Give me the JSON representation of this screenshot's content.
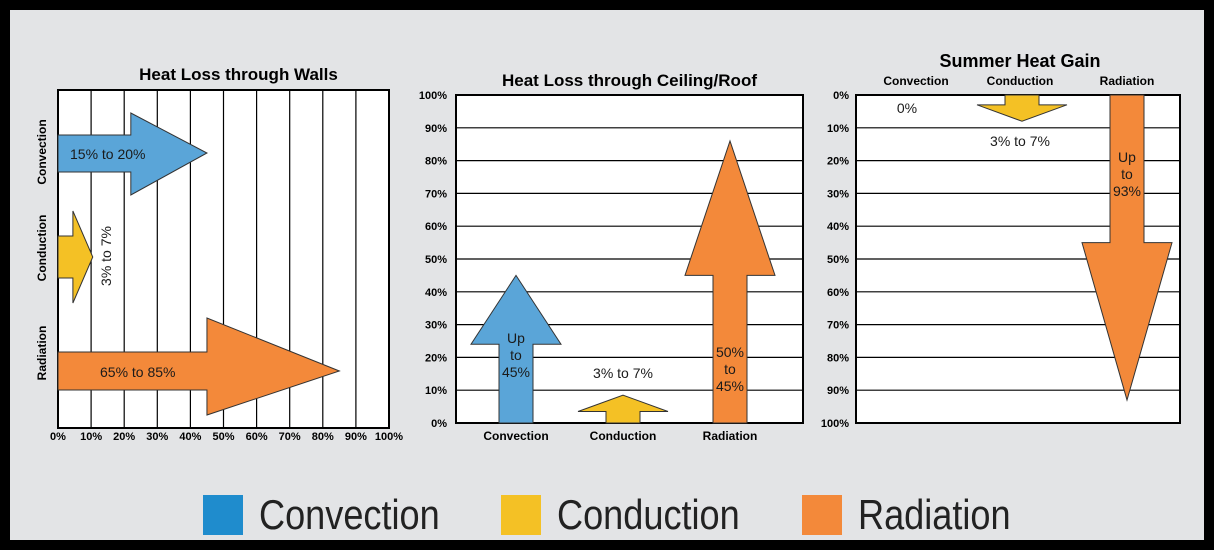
{
  "colors": {
    "convection": "#5aa5d8",
    "conduction": "#f4c125",
    "radiation": "#f3893a",
    "background": "#e3e4e6",
    "grid": "#000000"
  },
  "chart_data": [
    {
      "type": "bar",
      "orientation": "horizontal",
      "title": "Heat Loss through Walls",
      "categories": [
        "Convection",
        "Conduction",
        "Radiation"
      ],
      "x_ticks": [
        "0%",
        "10%",
        "20%",
        "30%",
        "40%",
        "50%",
        "60%",
        "70%",
        "80%",
        "90%",
        "100%"
      ],
      "xlim": [
        0,
        100
      ],
      "grid": true,
      "series": [
        {
          "category": "Convection",
          "range": [
            15,
            20
          ],
          "label": "15% to 20%"
        },
        {
          "category": "Conduction",
          "range": [
            3,
            7
          ],
          "label": "3% to 7%"
        },
        {
          "category": "Radiation",
          "range": [
            65,
            85
          ],
          "label": "65% to 85%"
        }
      ]
    },
    {
      "type": "bar",
      "orientation": "vertical",
      "title": "Heat Loss through Ceiling/Roof",
      "categories": [
        "Convection",
        "Conduction",
        "Radiation"
      ],
      "y_ticks": [
        "100%",
        "90%",
        "80%",
        "70%",
        "60%",
        "50%",
        "40%",
        "30%",
        "20%",
        "10%",
        "0%"
      ],
      "ylim": [
        0,
        100
      ],
      "grid": true,
      "series": [
        {
          "category": "Convection",
          "max": 45,
          "label": "Up to 45%"
        },
        {
          "category": "Conduction",
          "range": [
            3,
            7
          ],
          "label": "3% to 7%"
        },
        {
          "category": "Radiation",
          "range": [
            45,
            50
          ],
          "label": "50% to 45%"
        }
      ]
    },
    {
      "type": "bar",
      "orientation": "vertical-inverted",
      "title": "Summer Heat Gain",
      "categories": [
        "Convection",
        "Conduction",
        "Radiation"
      ],
      "y_ticks": [
        "0%",
        "10%",
        "20%",
        "30%",
        "40%",
        "50%",
        "60%",
        "70%",
        "80%",
        "90%",
        "100%"
      ],
      "ylim": [
        0,
        100
      ],
      "grid": true,
      "series": [
        {
          "category": "Convection",
          "value": 0,
          "label": "0%"
        },
        {
          "category": "Conduction",
          "range": [
            3,
            7
          ],
          "label": "3% to 7%"
        },
        {
          "category": "Radiation",
          "max": 93,
          "label": "Up to 93%"
        }
      ]
    }
  ],
  "legend": [
    {
      "name": "Convection",
      "color": "#1f8ccd"
    },
    {
      "name": "Conduction",
      "color": "#f4c125"
    },
    {
      "name": "Radiation",
      "color": "#f3893a"
    }
  ]
}
